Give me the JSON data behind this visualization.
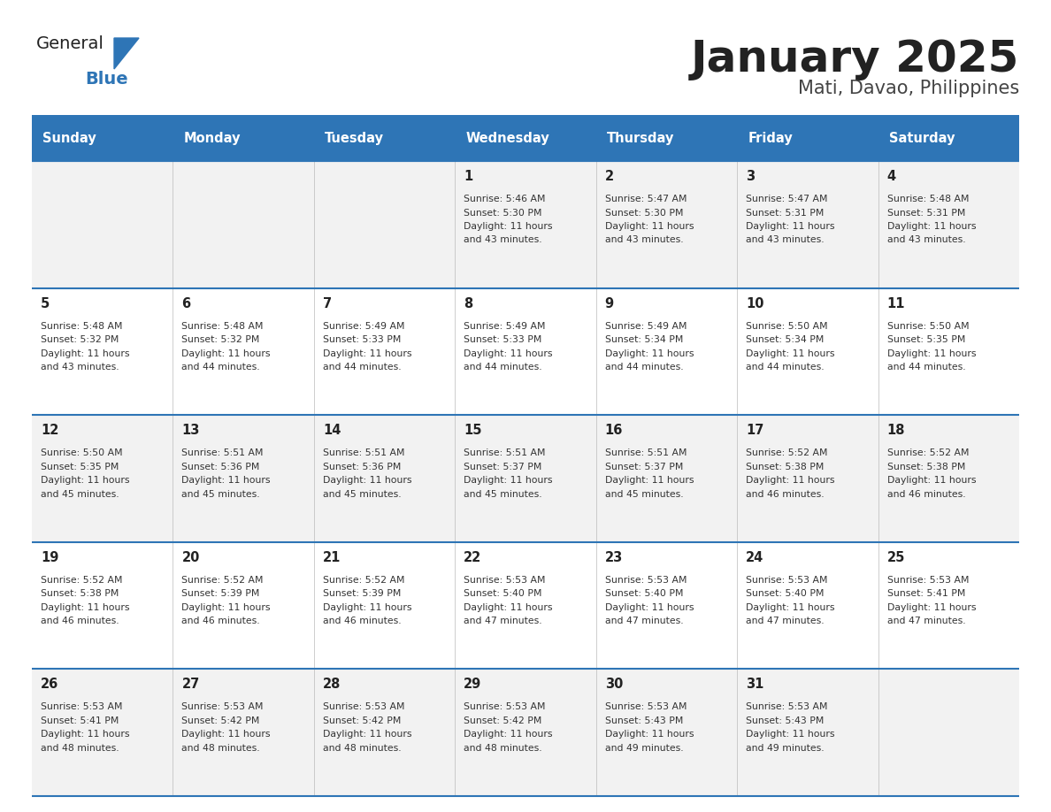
{
  "title": "January 2025",
  "subtitle": "Mati, Davao, Philippines",
  "header_bg_color": "#2E75B6",
  "header_text_color": "#FFFFFF",
  "day_names": [
    "Sunday",
    "Monday",
    "Tuesday",
    "Wednesday",
    "Thursday",
    "Friday",
    "Saturday"
  ],
  "row_bg_even": "#F2F2F2",
  "row_bg_odd": "#FFFFFF",
  "cell_text_color": "#333333",
  "day_num_color": "#222222",
  "border_color": "#2E75B6",
  "calendar": [
    [
      null,
      null,
      null,
      {
        "day": "1",
        "sunrise": "5:46 AM",
        "sunset": "5:30 PM",
        "daylight": "11 hours",
        "daylight2": "and 43 minutes."
      },
      {
        "day": "2",
        "sunrise": "5:47 AM",
        "sunset": "5:30 PM",
        "daylight": "11 hours",
        "daylight2": "and 43 minutes."
      },
      {
        "day": "3",
        "sunrise": "5:47 AM",
        "sunset": "5:31 PM",
        "daylight": "11 hours",
        "daylight2": "and 43 minutes."
      },
      {
        "day": "4",
        "sunrise": "5:48 AM",
        "sunset": "5:31 PM",
        "daylight": "11 hours",
        "daylight2": "and 43 minutes."
      }
    ],
    [
      {
        "day": "5",
        "sunrise": "5:48 AM",
        "sunset": "5:32 PM",
        "daylight": "11 hours",
        "daylight2": "and 43 minutes."
      },
      {
        "day": "6",
        "sunrise": "5:48 AM",
        "sunset": "5:32 PM",
        "daylight": "11 hours",
        "daylight2": "and 44 minutes."
      },
      {
        "day": "7",
        "sunrise": "5:49 AM",
        "sunset": "5:33 PM",
        "daylight": "11 hours",
        "daylight2": "and 44 minutes."
      },
      {
        "day": "8",
        "sunrise": "5:49 AM",
        "sunset": "5:33 PM",
        "daylight": "11 hours",
        "daylight2": "and 44 minutes."
      },
      {
        "day": "9",
        "sunrise": "5:49 AM",
        "sunset": "5:34 PM",
        "daylight": "11 hours",
        "daylight2": "and 44 minutes."
      },
      {
        "day": "10",
        "sunrise": "5:50 AM",
        "sunset": "5:34 PM",
        "daylight": "11 hours",
        "daylight2": "and 44 minutes."
      },
      {
        "day": "11",
        "sunrise": "5:50 AM",
        "sunset": "5:35 PM",
        "daylight": "11 hours",
        "daylight2": "and 44 minutes."
      }
    ],
    [
      {
        "day": "12",
        "sunrise": "5:50 AM",
        "sunset": "5:35 PM",
        "daylight": "11 hours",
        "daylight2": "and 45 minutes."
      },
      {
        "day": "13",
        "sunrise": "5:51 AM",
        "sunset": "5:36 PM",
        "daylight": "11 hours",
        "daylight2": "and 45 minutes."
      },
      {
        "day": "14",
        "sunrise": "5:51 AM",
        "sunset": "5:36 PM",
        "daylight": "11 hours",
        "daylight2": "and 45 minutes."
      },
      {
        "day": "15",
        "sunrise": "5:51 AM",
        "sunset": "5:37 PM",
        "daylight": "11 hours",
        "daylight2": "and 45 minutes."
      },
      {
        "day": "16",
        "sunrise": "5:51 AM",
        "sunset": "5:37 PM",
        "daylight": "11 hours",
        "daylight2": "and 45 minutes."
      },
      {
        "day": "17",
        "sunrise": "5:52 AM",
        "sunset": "5:38 PM",
        "daylight": "11 hours",
        "daylight2": "and 46 minutes."
      },
      {
        "day": "18",
        "sunrise": "5:52 AM",
        "sunset": "5:38 PM",
        "daylight": "11 hours",
        "daylight2": "and 46 minutes."
      }
    ],
    [
      {
        "day": "19",
        "sunrise": "5:52 AM",
        "sunset": "5:38 PM",
        "daylight": "11 hours",
        "daylight2": "and 46 minutes."
      },
      {
        "day": "20",
        "sunrise": "5:52 AM",
        "sunset": "5:39 PM",
        "daylight": "11 hours",
        "daylight2": "and 46 minutes."
      },
      {
        "day": "21",
        "sunrise": "5:52 AM",
        "sunset": "5:39 PM",
        "daylight": "11 hours",
        "daylight2": "and 46 minutes."
      },
      {
        "day": "22",
        "sunrise": "5:53 AM",
        "sunset": "5:40 PM",
        "daylight": "11 hours",
        "daylight2": "and 47 minutes."
      },
      {
        "day": "23",
        "sunrise": "5:53 AM",
        "sunset": "5:40 PM",
        "daylight": "11 hours",
        "daylight2": "and 47 minutes."
      },
      {
        "day": "24",
        "sunrise": "5:53 AM",
        "sunset": "5:40 PM",
        "daylight": "11 hours",
        "daylight2": "and 47 minutes."
      },
      {
        "day": "25",
        "sunrise": "5:53 AM",
        "sunset": "5:41 PM",
        "daylight": "11 hours",
        "daylight2": "and 47 minutes."
      }
    ],
    [
      {
        "day": "26",
        "sunrise": "5:53 AM",
        "sunset": "5:41 PM",
        "daylight": "11 hours",
        "daylight2": "and 48 minutes."
      },
      {
        "day": "27",
        "sunrise": "5:53 AM",
        "sunset": "5:42 PM",
        "daylight": "11 hours",
        "daylight2": "and 48 minutes."
      },
      {
        "day": "28",
        "sunrise": "5:53 AM",
        "sunset": "5:42 PM",
        "daylight": "11 hours",
        "daylight2": "and 48 minutes."
      },
      {
        "day": "29",
        "sunrise": "5:53 AM",
        "sunset": "5:42 PM",
        "daylight": "11 hours",
        "daylight2": "and 48 minutes."
      },
      {
        "day": "30",
        "sunrise": "5:53 AM",
        "sunset": "5:43 PM",
        "daylight": "11 hours",
        "daylight2": "and 49 minutes."
      },
      {
        "day": "31",
        "sunrise": "5:53 AM",
        "sunset": "5:43 PM",
        "daylight": "11 hours",
        "daylight2": "and 49 minutes."
      },
      null
    ]
  ],
  "logo_general_color": "#222222",
  "logo_blue_color": "#2E75B6",
  "logo_triangle_color": "#2E75B6",
  "title_color": "#222222",
  "subtitle_color": "#444444"
}
